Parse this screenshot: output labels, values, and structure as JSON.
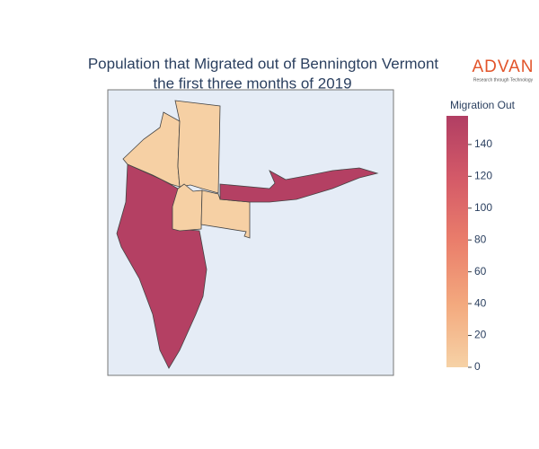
{
  "chart_data": {
    "type": "choropleth",
    "title": "Population that Migrated out of Bennington Vermont",
    "subtitle": "the first three months of 2019",
    "logo": "ADVAN",
    "logo_tagline": "Research through Technology",
    "colorbar_title": "Migration Out",
    "values": [
      155,
      2,
      2,
      2,
      2,
      155
    ],
    "zlim": [
      0,
      158
    ],
    "zticks": [
      0,
      20,
      40,
      60,
      80,
      100,
      120,
      140
    ],
    "colorscale": [
      "#f6d2a6",
      "#f3a97e",
      "#ea7e6b",
      "#d45a68",
      "#b13e63"
    ]
  }
}
